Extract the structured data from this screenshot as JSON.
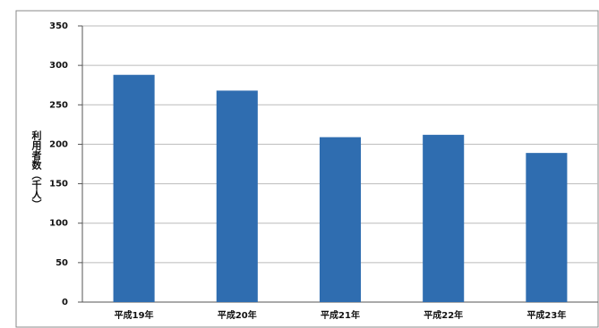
{
  "chart_data": {
    "type": "bar",
    "y_axis_label": "利用者数（千人）",
    "categories": [
      "平成19年",
      "平成20年",
      "平成21年",
      "平成22年",
      "平成23年"
    ],
    "values": [
      288,
      268,
      209,
      212,
      189
    ],
    "color": "#2f6db0",
    "ylim": [
      0,
      350
    ],
    "yticks": [
      0,
      50,
      100,
      150,
      200,
      250,
      300,
      350
    ],
    "grid": true
  }
}
